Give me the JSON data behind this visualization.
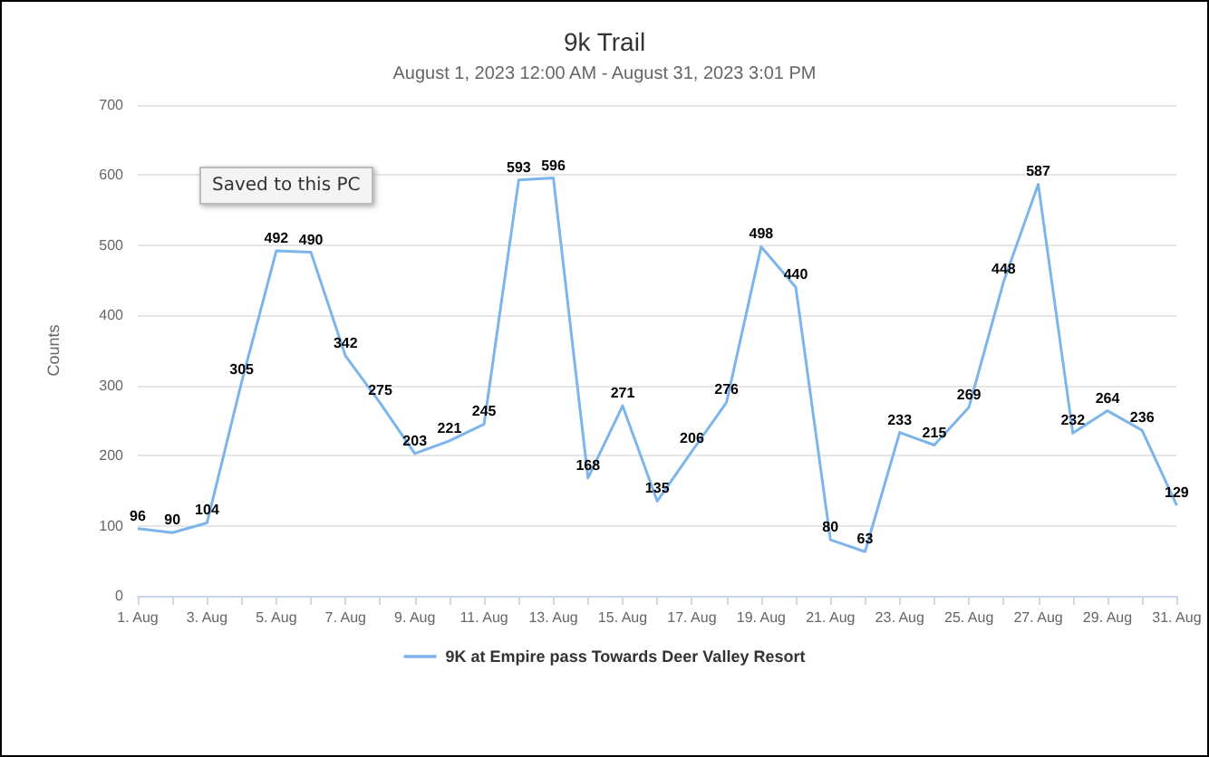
{
  "chart_data": {
    "type": "line",
    "title": "9k Trail",
    "subtitle": "August 1, 2023 12:00 AM - August 31, 2023 3:01 PM",
    "ylabel": "Counts",
    "categories": [
      "1. Aug",
      null,
      "3. Aug",
      null,
      "5. Aug",
      null,
      "7. Aug",
      null,
      "9. Aug",
      null,
      "11. Aug",
      null,
      "13. Aug",
      null,
      "15. Aug",
      null,
      "17. Aug",
      null,
      "19. Aug",
      null,
      "21. Aug",
      null,
      "23. Aug",
      null,
      "25. Aug",
      null,
      "27. Aug",
      null,
      "29. Aug",
      null,
      "31. Aug"
    ],
    "series": [
      {
        "name": "9K at Empire pass Towards Deer Valley Resort",
        "color": "#7cb5ec",
        "values": [
          96,
          90,
          104,
          305,
          492,
          490,
          342,
          275,
          203,
          221,
          245,
          593,
          596,
          168,
          271,
          135,
          206,
          276,
          498,
          440,
          80,
          63,
          233,
          215,
          269,
          448,
          587,
          232,
          264,
          236,
          129
        ]
      }
    ],
    "ylim": [
      0,
      700
    ],
    "yticks": [
      0,
      100,
      200,
      300,
      400,
      500,
      600,
      700
    ],
    "grid": "y",
    "legend": "bottom",
    "marker": "none",
    "data_labels": true,
    "annotations": [
      "Saved to this PC"
    ]
  }
}
